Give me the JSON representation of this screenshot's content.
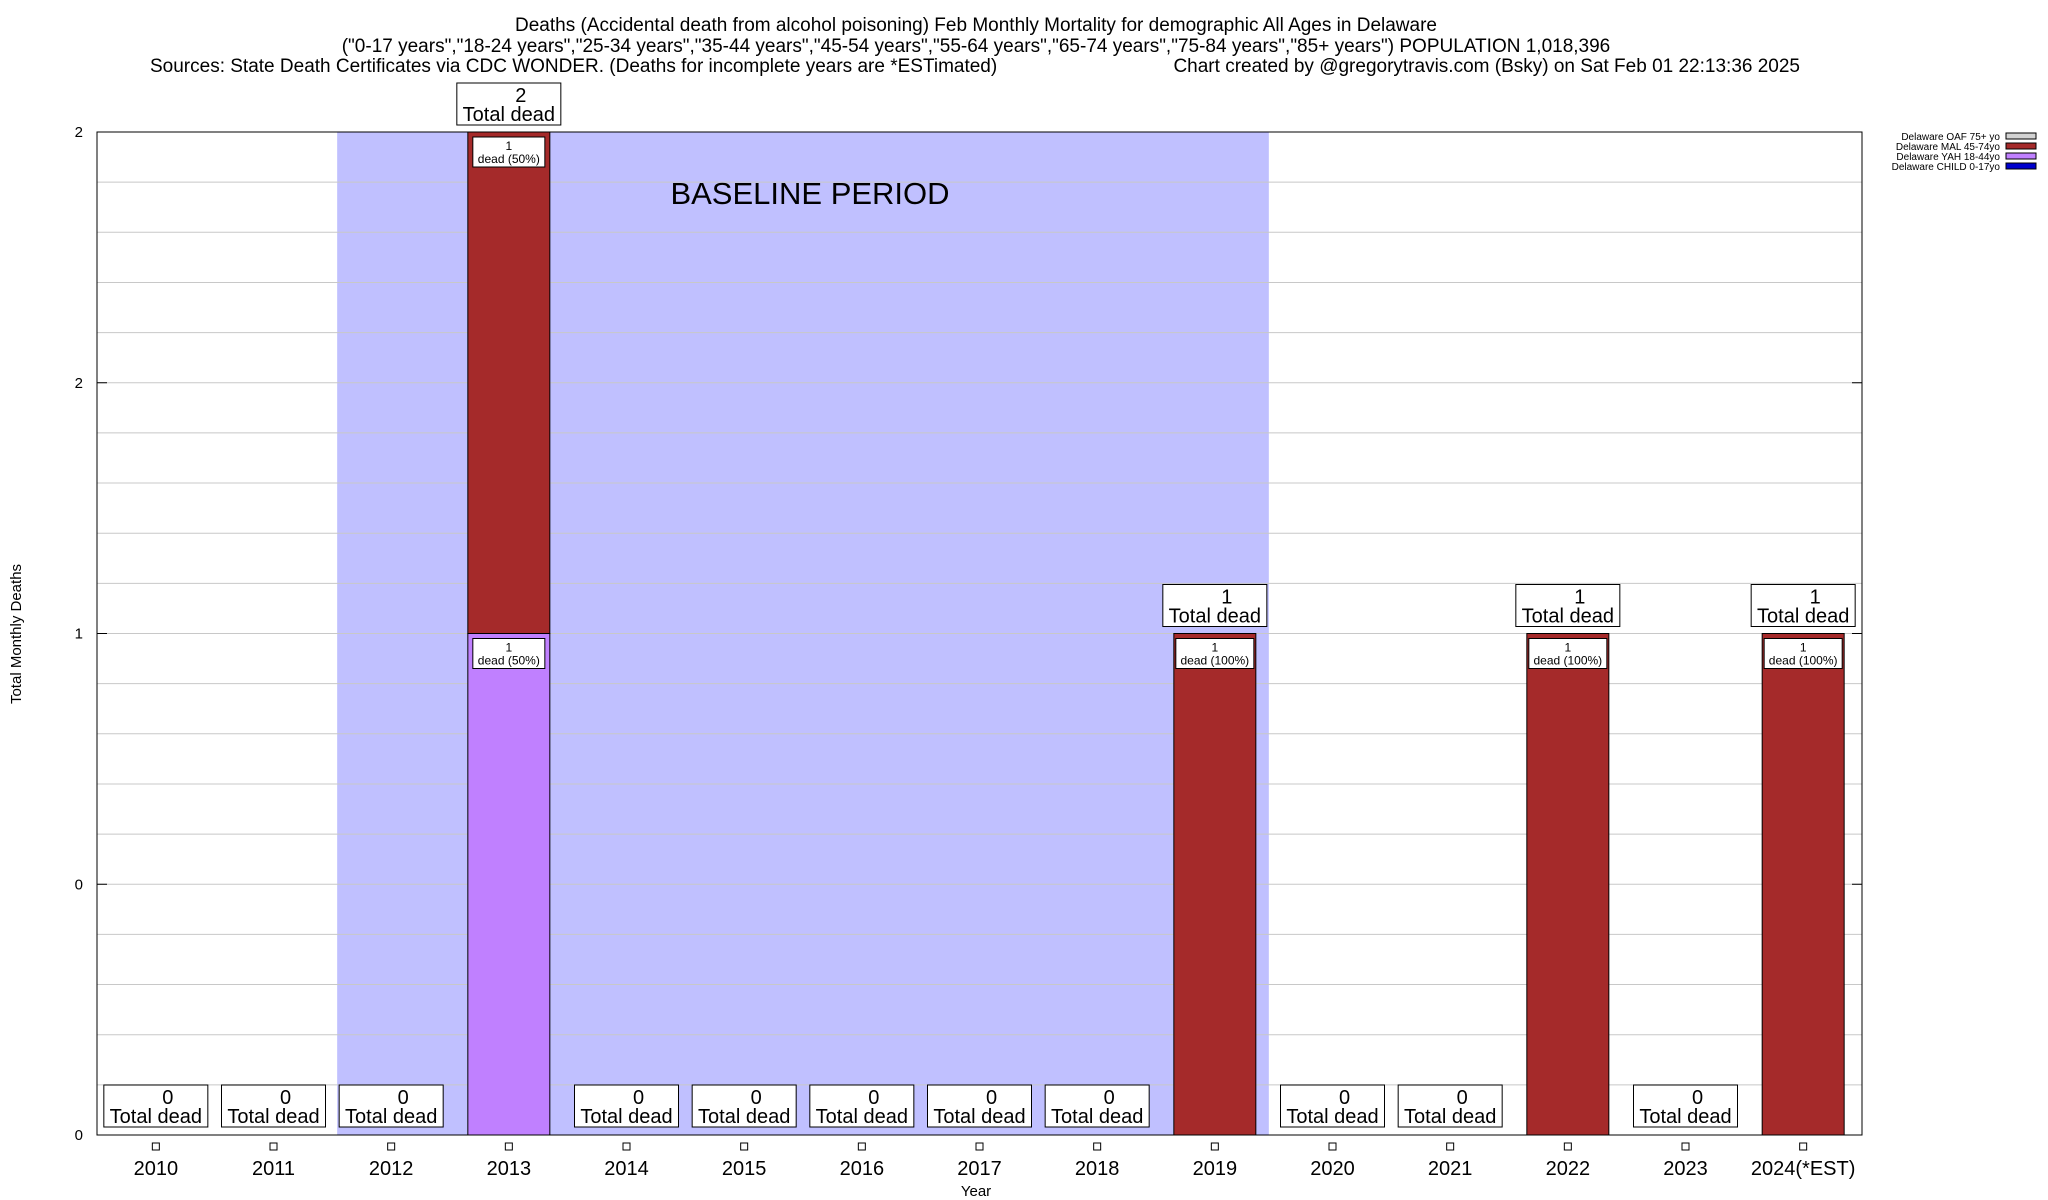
{
  "chart_data": {
    "type": "bar",
    "stacked": true,
    "title_lines": [
      "Deaths (Accidental death from alcohol poisoning) Feb Monthly Mortality for demographic All Ages in Delaware",
      "(\"0-17 years\",\"18-24 years\",\"25-34 years\",\"35-44 years\",\"45-54 years\",\"55-64 years\",\"65-74 years\",\"75-84 years\",\"85+ years\") POPULATION 1,018,396",
      "Sources: State Death Certificates via CDC WONDER. (Deaths for incomplete years are *ESTimated)",
      "Chart created by @gregorytravis.com (Bsky) on Sat Feb 01 22:13:36 2025"
    ],
    "xlabel": "Year",
    "ylabel": "Total Monthly Deaths",
    "ylim": [
      0,
      2
    ],
    "yticks": [
      {
        "value": 0,
        "label": "0"
      },
      {
        "value": 0.5,
        "label": "0"
      },
      {
        "value": 1,
        "label": "1"
      },
      {
        "value": 1.5,
        "label": "2"
      },
      {
        "value": 2,
        "label": "2"
      }
    ],
    "grid": true,
    "legend_position": "top-right",
    "categories": [
      "2010",
      "2011",
      "2012",
      "2013",
      "2014",
      "2015",
      "2016",
      "2017",
      "2018",
      "2019",
      "2020",
      "2021",
      "2022",
      "2023",
      "2024(*EST)"
    ],
    "series": [
      {
        "name": "Delaware OAF 75+ yo",
        "color": "#d3d3d3",
        "values": [
          0,
          0,
          0,
          0,
          0,
          0,
          0,
          0,
          0,
          0,
          0,
          0,
          0,
          0,
          0
        ]
      },
      {
        "name": "Delaware MAL 45-74yo",
        "color": "#a52a2a",
        "values": [
          0,
          0,
          0,
          1,
          0,
          0,
          0,
          0,
          0,
          1,
          0,
          0,
          1,
          0,
          1
        ]
      },
      {
        "name": "Delaware YAH 18-44yo",
        "color": "#c080ff",
        "values": [
          0,
          0,
          0,
          1,
          0,
          0,
          0,
          0,
          0,
          0,
          0,
          0,
          0,
          0,
          0
        ]
      },
      {
        "name": "Delaware CHILD 0-17yo",
        "color": "#0000cd",
        "values": [
          0,
          0,
          0,
          0,
          0,
          0,
          0,
          0,
          0,
          0,
          0,
          0,
          0,
          0,
          0
        ]
      }
    ],
    "totals": [
      0,
      0,
      0,
      2,
      0,
      0,
      0,
      0,
      0,
      1,
      0,
      0,
      1,
      0,
      1
    ],
    "total_suffix": "Total dead",
    "segment_labels": [
      {
        "category": "2013",
        "series": "Delaware MAL 45-74yo",
        "count": "1",
        "text": "dead (50%)"
      },
      {
        "category": "2013",
        "series": "Delaware YAH 18-44yo",
        "count": "1",
        "text": "dead (50%)"
      },
      {
        "category": "2019",
        "series": "Delaware MAL 45-74yo",
        "count": "1",
        "text": "dead (100%)"
      },
      {
        "category": "2022",
        "series": "Delaware MAL 45-74yo",
        "count": "1",
        "text": "dead (100%)"
      },
      {
        "category": "2024(*EST)",
        "series": "Delaware MAL 45-74yo",
        "count": "1",
        "text": "dead (100%)"
      }
    ],
    "baseline": {
      "label": "BASELINE PERIOD",
      "from": "2012",
      "to": "2019",
      "color": "#c0c0ff"
    }
  }
}
